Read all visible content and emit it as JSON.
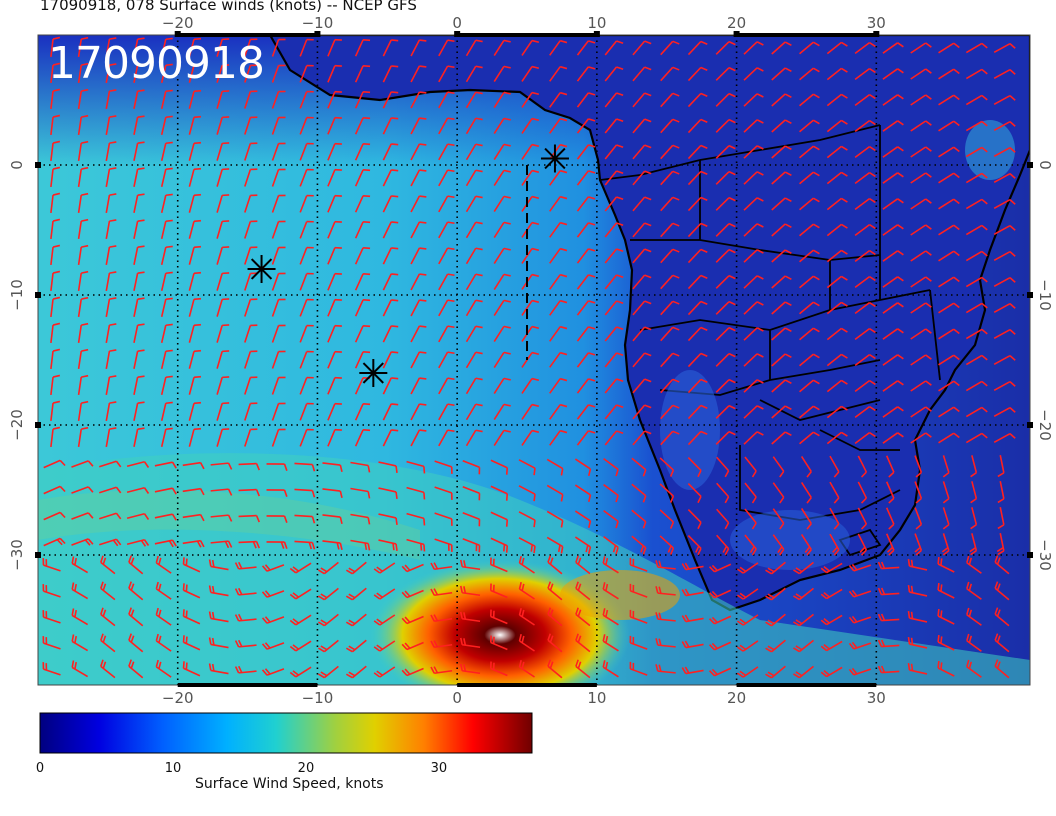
{
  "header": {
    "title": "17090918, 078 Surface winds (knots) -- NCEP GFS"
  },
  "map": {
    "timestamp": "17090918",
    "lon_range": [
      -30,
      41
    ],
    "lat_range": [
      -40,
      10
    ],
    "lon_ticks": [
      -20,
      -10,
      0,
      10,
      20,
      30
    ],
    "lat_ticks": [
      0,
      -10,
      -20,
      -30
    ],
    "graticule_lons": [
      -20,
      -10,
      0,
      10,
      20,
      30
    ],
    "graticule_lats": [
      0,
      -10,
      -20,
      -30
    ],
    "cyclone_center": {
      "lon": 3,
      "lat": -37
    },
    "storm_markers": [
      {
        "name": "marker-1",
        "lon": 7,
        "lat": 0.5
      },
      {
        "name": "marker-2",
        "lon": -14,
        "lat": -8
      },
      {
        "name": "marker-3",
        "lon": -6,
        "lat": -16
      }
    ],
    "track_line": [
      {
        "lon": 5,
        "lat": 0
      },
      {
        "lon": 5,
        "lat": -15
      }
    ]
  },
  "colorbar": {
    "title": "Surface Wind Speed, knots",
    "min": 0,
    "max": 37,
    "ticks": [
      0,
      10,
      20,
      30
    ],
    "colors": [
      "#000080",
      "#0000ff",
      "#0080ff",
      "#00c8e0",
      "#40d0c0",
      "#c0d000",
      "#ff8000",
      "#ff0000",
      "#800000"
    ]
  },
  "colors": {
    "land": "#1a2ea8",
    "ocean_dark": "#1b2ec0",
    "ocean_mid": "#2f8fe0",
    "ocean_light": "#40c8d8",
    "barb": "#ff2020",
    "coast": "#000000"
  }
}
